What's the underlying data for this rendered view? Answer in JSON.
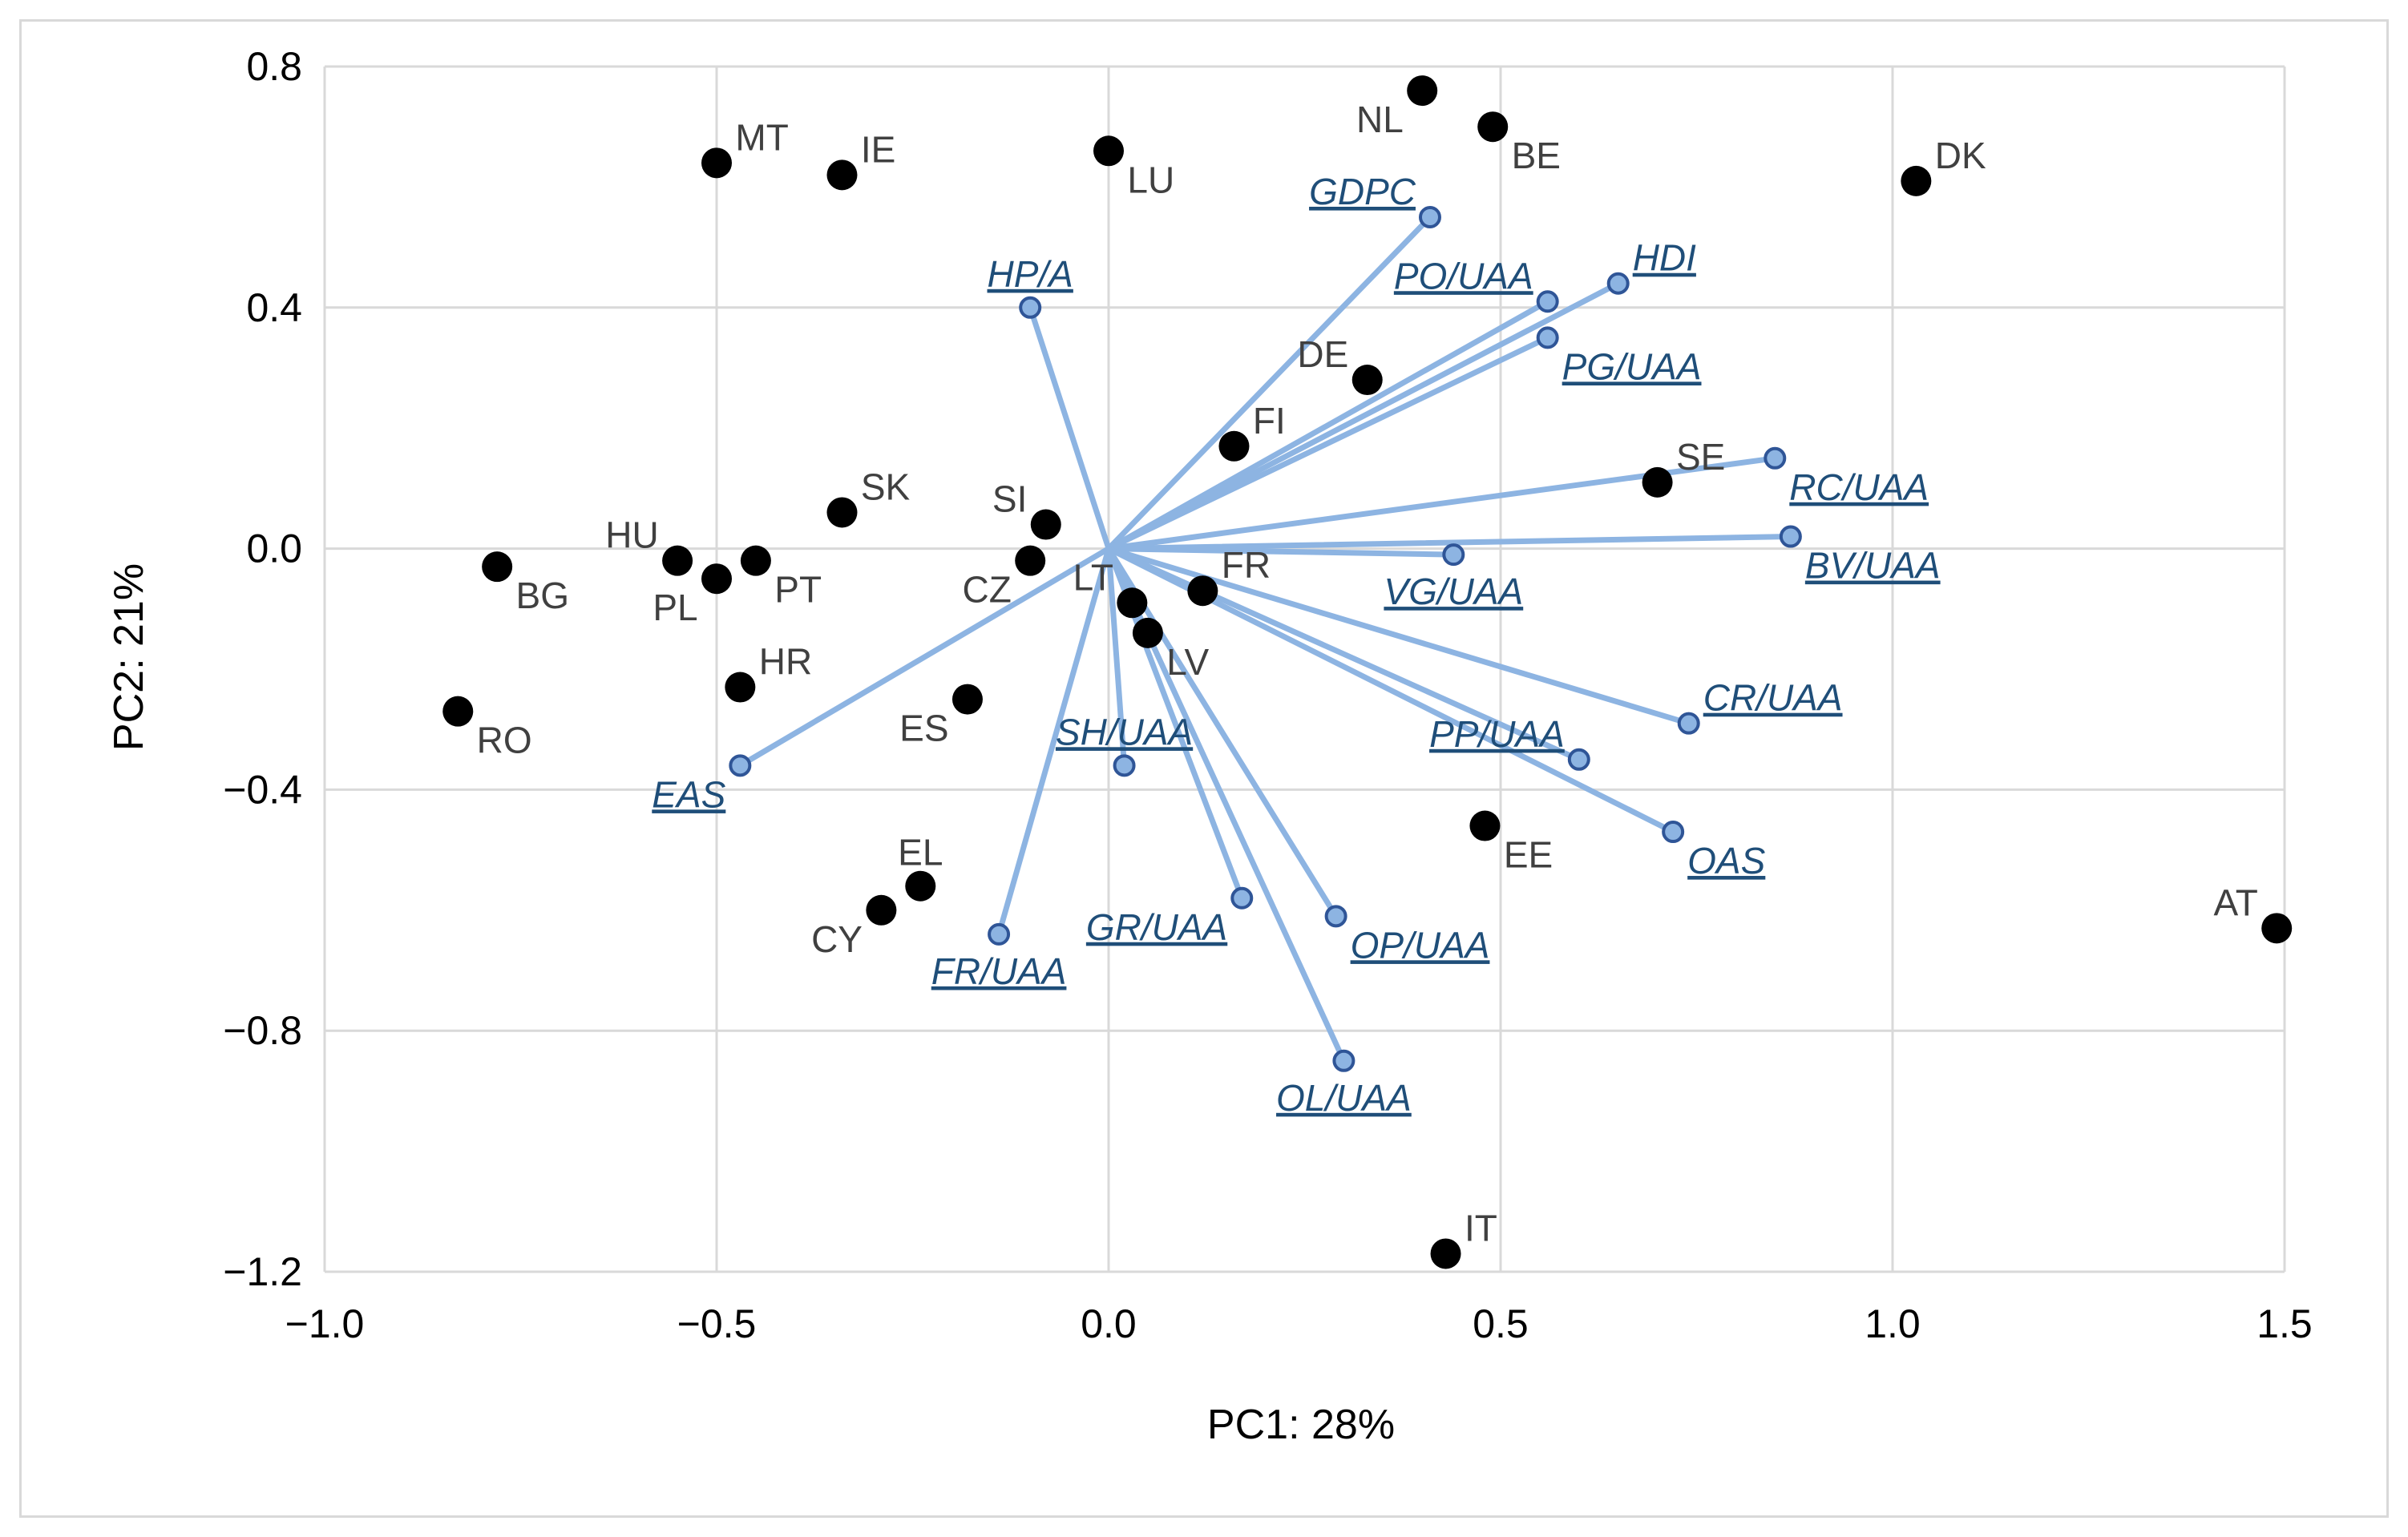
{
  "colors": {
    "grid": "#d9d9d9",
    "country_point": "#000000",
    "country_label": "#404040",
    "vector_line": "#8db4e2",
    "vector_point_fill": "#8db4e2",
    "vector_point_stroke": "#2f5597",
    "vector_label": "#1f4e79"
  },
  "chart_data": {
    "type": "scatter",
    "title": "",
    "xlabel": "PC1: 28%",
    "ylabel": "PC2: 21%",
    "xlim": [
      -1.0,
      1.5
    ],
    "ylim": [
      -1.2,
      0.8
    ],
    "xticks": [
      "−1.0",
      "−0.5",
      "0.0",
      "0.5",
      "1.0",
      "1.5"
    ],
    "xtick_values": [
      -1.0,
      -0.5,
      0.0,
      0.5,
      1.0,
      1.5
    ],
    "yticks": [
      "0.8",
      "0.4",
      "0.0",
      "−0.4",
      "−0.8",
      "−1.2"
    ],
    "ytick_values": [
      0.8,
      0.4,
      0.0,
      -0.4,
      -0.8,
      -1.2
    ],
    "grid": true,
    "countries": [
      {
        "label": "MT",
        "x": -0.5,
        "y": 0.64,
        "pos": "ne"
      },
      {
        "label": "IE",
        "x": -0.34,
        "y": 0.62,
        "pos": "ne"
      },
      {
        "label": "LU",
        "x": 0.0,
        "y": 0.66,
        "pos": "se"
      },
      {
        "label": "NL",
        "x": 0.4,
        "y": 0.76,
        "pos": "sw"
      },
      {
        "label": "BE",
        "x": 0.49,
        "y": 0.7,
        "pos": "se"
      },
      {
        "label": "DK",
        "x": 1.03,
        "y": 0.61,
        "pos": "ne"
      },
      {
        "label": "DE",
        "x": 0.33,
        "y": 0.28,
        "pos": "nw"
      },
      {
        "label": "FI",
        "x": 0.16,
        "y": 0.17,
        "pos": "ne"
      },
      {
        "label": "SE",
        "x": 0.7,
        "y": 0.11,
        "pos": "ne"
      },
      {
        "label": "SK",
        "x": -0.34,
        "y": 0.06,
        "pos": "ne"
      },
      {
        "label": "SI",
        "x": -0.08,
        "y": 0.04,
        "pos": "nw"
      },
      {
        "label": "HU",
        "x": -0.55,
        "y": -0.02,
        "pos": "nw"
      },
      {
        "label": "PT",
        "x": -0.45,
        "y": -0.02,
        "pos": "se"
      },
      {
        "label": "PL",
        "x": -0.5,
        "y": -0.05,
        "pos": "sw"
      },
      {
        "label": "BG",
        "x": -0.78,
        "y": -0.03,
        "pos": "se"
      },
      {
        "label": "CZ",
        "x": -0.1,
        "y": -0.02,
        "pos": "sw"
      },
      {
        "label": "LT",
        "x": 0.03,
        "y": -0.09,
        "pos": "nw"
      },
      {
        "label": "FR",
        "x": 0.12,
        "y": -0.07,
        "pos": "ne"
      },
      {
        "label": "LV",
        "x": 0.05,
        "y": -0.14,
        "pos": "se"
      },
      {
        "label": "HR",
        "x": -0.47,
        "y": -0.23,
        "pos": "ne"
      },
      {
        "label": "RO",
        "x": -0.83,
        "y": -0.27,
        "pos": "se"
      },
      {
        "label": "ES",
        "x": -0.18,
        "y": -0.25,
        "pos": "sw"
      },
      {
        "label": "EL",
        "x": -0.24,
        "y": -0.56,
        "pos": "n"
      },
      {
        "label": "CY",
        "x": -0.29,
        "y": -0.6,
        "pos": "sw"
      },
      {
        "label": "EE",
        "x": 0.48,
        "y": -0.46,
        "pos": "se"
      },
      {
        "label": "AT",
        "x": 1.49,
        "y": -0.63,
        "pos": "nw"
      },
      {
        "label": "IT",
        "x": 0.43,
        "y": -1.17,
        "pos": "ne"
      }
    ],
    "variables": [
      {
        "label": "GDPC",
        "x": 0.41,
        "y": 0.55,
        "pos": "nw"
      },
      {
        "label": "HP/A",
        "x": -0.1,
        "y": 0.4,
        "pos": "n"
      },
      {
        "label": "PO/UAA",
        "x": 0.56,
        "y": 0.41,
        "pos": "nw"
      },
      {
        "label": "HDI",
        "x": 0.65,
        "y": 0.44,
        "pos": "ne"
      },
      {
        "label": "PG/UAA",
        "x": 0.56,
        "y": 0.35,
        "pos": "se"
      },
      {
        "label": "RC/UAA",
        "x": 0.85,
        "y": 0.15,
        "pos": "se"
      },
      {
        "label": "BV/UAA",
        "x": 0.87,
        "y": 0.02,
        "pos": "se"
      },
      {
        "label": "VG/UAA",
        "x": 0.44,
        "y": -0.01,
        "pos": "s"
      },
      {
        "label": "CR/UAA",
        "x": 0.74,
        "y": -0.29,
        "pos": "ne"
      },
      {
        "label": "PP/UAA",
        "x": 0.6,
        "y": -0.35,
        "pos": "nw"
      },
      {
        "label": "OAS",
        "x": 0.72,
        "y": -0.47,
        "pos": "se"
      },
      {
        "label": "SH/UAA",
        "x": 0.02,
        "y": -0.36,
        "pos": "n"
      },
      {
        "label": "EAS",
        "x": -0.47,
        "y": -0.36,
        "pos": "sw"
      },
      {
        "label": "FR/UAA",
        "x": -0.14,
        "y": -0.64,
        "pos": "s"
      },
      {
        "label": "GR/UAA",
        "x": 0.17,
        "y": -0.58,
        "pos": "sw"
      },
      {
        "label": "OP/UAA",
        "x": 0.29,
        "y": -0.61,
        "pos": "se"
      },
      {
        "label": "OL/UAA",
        "x": 0.3,
        "y": -0.85,
        "pos": "s"
      }
    ]
  }
}
